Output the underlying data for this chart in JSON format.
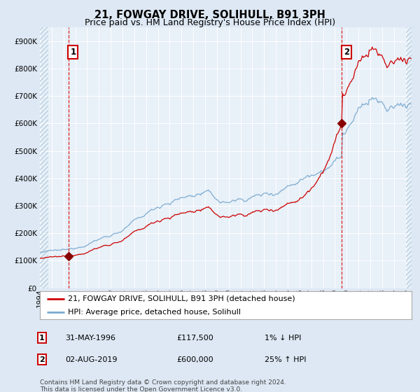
{
  "title": "21, FOWGAY DRIVE, SOLIHULL, B91 3PH",
  "subtitle": "Price paid vs. HM Land Registry's House Price Index (HPI)",
  "legend_line1": "21, FOWGAY DRIVE, SOLIHULL, B91 3PH (detached house)",
  "legend_line2": "HPI: Average price, detached house, Solihull",
  "point1_label": "1",
  "point1_date": "31-MAY-1996",
  "point1_price": "£117,500",
  "point1_hpi": "1% ↓ HPI",
  "point2_label": "2",
  "point2_date": "02-AUG-2019",
  "point2_price": "£600,000",
  "point2_hpi": "25% ↑ HPI",
  "footnote": "Contains HM Land Registry data © Crown copyright and database right 2024.\nThis data is licensed under the Open Government Licence v3.0.",
  "bg_color": "#dde8f4",
  "plot_bg": "#e8f0f8",
  "grid_color": "#ffffff",
  "red_line_color": "#cc0000",
  "blue_line_color": "#7aaad0",
  "marker_color": "#880000",
  "dashed_line_color": "#dd2222",
  "ylim": [
    0,
    950000
  ],
  "yticks": [
    0,
    100000,
    200000,
    300000,
    400000,
    500000,
    600000,
    700000,
    800000,
    900000
  ],
  "xlim_start": 1994.0,
  "xlim_end": 2025.5,
  "point1_x": 1996.42,
  "point1_y": 117500,
  "point2_x": 2019.58,
  "point2_y": 600000,
  "hpi_at_p1": 118686,
  "hpi_at_p2": 480000,
  "title_fontsize": 10.5,
  "subtitle_fontsize": 9,
  "tick_fontsize": 7.5,
  "legend_fontsize": 8,
  "annot_fontsize": 8,
  "footnote_fontsize": 6.5
}
